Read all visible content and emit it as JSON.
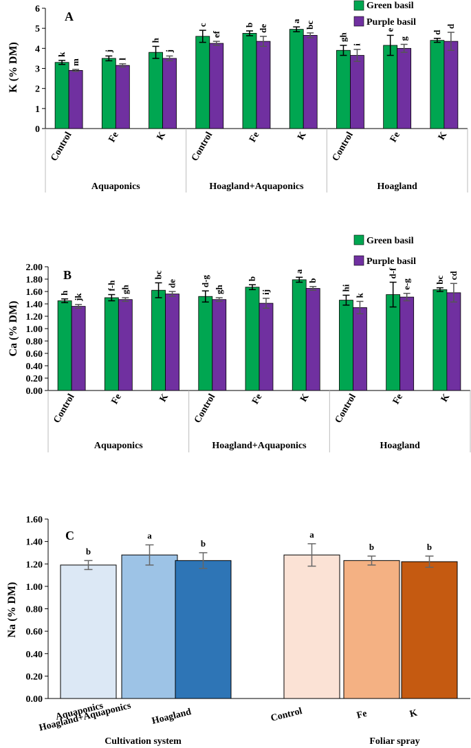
{
  "colors": {
    "green_basil": "#00a651",
    "purple_basil": "#7030a0",
    "aquaponics": "#dce8f5",
    "hoagland_aquaponics": "#9dc3e6",
    "hoagland": "#2e75b6",
    "control": "#fbe2d5",
    "fe": "#f4b183",
    "k": "#c55a11"
  },
  "chart_data": [
    {
      "id": "A",
      "type": "bar",
      "panel_label": "A",
      "ylabel": "K (% DM)",
      "ylim": [
        0,
        6
      ],
      "yticks": [
        "0",
        "1",
        "2",
        "3",
        "4",
        "5",
        "6"
      ],
      "tick_values": [
        0,
        1,
        2,
        3,
        4,
        5,
        6
      ],
      "categories": [
        "Control",
        "Fe",
        "K",
        "Control",
        "Fe",
        "K",
        "Control",
        "Fe",
        "K"
      ],
      "groups": [
        "Aquaponics",
        "Hoagland+Aquaponics",
        "Hoagland"
      ],
      "legend": [
        "Green basil",
        "Purple basil"
      ],
      "series": [
        {
          "name": "Green basil",
          "values": [
            3.3,
            3.5,
            3.8,
            4.6,
            4.75,
            4.95,
            3.9,
            4.15,
            4.4
          ],
          "errors": [
            0.1,
            0.12,
            0.3,
            0.3,
            0.12,
            0.12,
            0.25,
            0.5,
            0.1
          ],
          "letters": [
            "k",
            "j",
            "h",
            "c",
            "b",
            "a",
            "gh",
            "e",
            "d"
          ]
        },
        {
          "name": "Purple basil",
          "values": [
            2.9,
            3.15,
            3.5,
            4.25,
            4.35,
            4.65,
            3.65,
            4.0,
            4.35
          ],
          "errors": [
            0.05,
            0.08,
            0.12,
            0.1,
            0.25,
            0.12,
            0.3,
            0.2,
            0.45
          ],
          "letters": [
            "m",
            "l",
            "j",
            "ef",
            "de",
            "bc",
            "i",
            "g",
            "d"
          ]
        }
      ]
    },
    {
      "id": "B",
      "type": "bar",
      "panel_label": "B",
      "ylabel": "Ca (% DM)",
      "ylim": [
        0,
        2
      ],
      "yticks": [
        "0.00",
        "0.20",
        "0.40",
        "0.60",
        "0.80",
        "1.00",
        "1.20",
        "1.40",
        "1.60",
        "1.80",
        "2.00"
      ],
      "tick_values": [
        0,
        0.2,
        0.4,
        0.6,
        0.8,
        1.0,
        1.2,
        1.4,
        1.6,
        1.8,
        2.0
      ],
      "categories": [
        "Control",
        "Fe",
        "K",
        "Control",
        "Fe",
        "K",
        "Control",
        "Fe",
        "K"
      ],
      "groups": [
        "Aquaponics",
        "Hoagland+Aquaponics",
        "Hoagland"
      ],
      "legend": [
        "Green basil",
        "Purple basil"
      ],
      "series": [
        {
          "name": "Green basil",
          "values": [
            1.45,
            1.5,
            1.62,
            1.52,
            1.67,
            1.79,
            1.46,
            1.55,
            1.63
          ],
          "errors": [
            0.03,
            0.05,
            0.12,
            0.09,
            0.04,
            0.04,
            0.08,
            0.2,
            0.03
          ],
          "letters": [
            "h",
            "f-h",
            "bc",
            "d-g",
            "b",
            "a",
            "hi",
            "d-f",
            "bc"
          ]
        },
        {
          "name": "Purple basil",
          "values": [
            1.36,
            1.47,
            1.56,
            1.47,
            1.41,
            1.65,
            1.34,
            1.51,
            1.58
          ],
          "errors": [
            0.03,
            0.03,
            0.04,
            0.03,
            0.08,
            0.03,
            0.1,
            0.06,
            0.15
          ],
          "letters": [
            "jk",
            "gh",
            "de",
            "gh",
            "ij",
            "b",
            "k",
            "e-g",
            "cd"
          ]
        }
      ]
    },
    {
      "id": "C",
      "type": "bar",
      "panel_label": "C",
      "ylabel": "Na (% DM)",
      "ylim": [
        0,
        1.6
      ],
      "yticks": [
        "0.00",
        "0.20",
        "0.40",
        "0.60",
        "0.80",
        "1.00",
        "1.20",
        "1.40",
        "1.60"
      ],
      "tick_values": [
        0,
        0.2,
        0.4,
        0.6,
        0.8,
        1.0,
        1.2,
        1.4,
        1.6
      ],
      "categories": [
        "Aquaponics",
        "Hoagland+Aquaponics",
        "Hoagland",
        "Control",
        "Fe",
        "K"
      ],
      "groups": [
        "Cultivation system",
        "Foliar spray"
      ],
      "values": [
        1.19,
        1.28,
        1.23,
        1.28,
        1.23,
        1.22
      ],
      "errors": [
        0.04,
        0.09,
        0.07,
        0.1,
        0.04,
        0.05
      ],
      "letters": [
        "b",
        "a",
        "b",
        "a",
        "b",
        "b"
      ]
    }
  ]
}
